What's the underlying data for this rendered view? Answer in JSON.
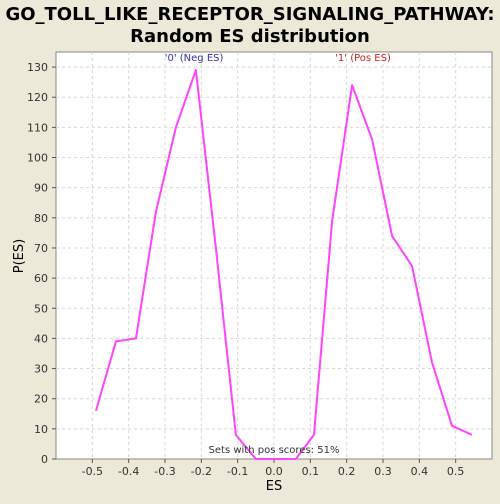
{
  "chart_data": {
    "type": "line",
    "title_line1": "GO_TOLL_LIKE_RECEPTOR_SIGNALING_PATHWAY:",
    "title_line2": "Random ES distribution",
    "xlabel": "ES",
    "ylabel": "P(ES)",
    "xlim": [
      -0.6,
      0.6
    ],
    "ylim": [
      0,
      135
    ],
    "x_ticks": [
      -0.5,
      -0.4,
      -0.3,
      -0.2,
      -0.1,
      0.0,
      0.1,
      0.2,
      0.3,
      0.4,
      0.5
    ],
    "x_tick_labels": [
      "-0.5",
      "-0.4",
      "-0.3",
      "-0.2",
      "-0.1",
      "0.0",
      "0.1",
      "0.2",
      "0.3",
      "0.4",
      "0.5"
    ],
    "y_ticks": [
      0,
      10,
      20,
      30,
      40,
      50,
      60,
      70,
      80,
      90,
      100,
      110,
      120,
      130
    ],
    "y_tick_labels": [
      "0",
      "10",
      "20",
      "30",
      "40",
      "50",
      "60",
      "70",
      "80",
      "90",
      "100",
      "110",
      "120",
      "130"
    ],
    "grid": true,
    "line_color": "#ff44ff",
    "background_color": "#ece9d8",
    "plot_background": "#ffffff",
    "annotations": [
      {
        "text": "'0' (Neg ES)",
        "x": -0.22,
        "y": 132,
        "color": "#3333aa"
      },
      {
        "text": "'1' (Pos ES)",
        "x": 0.245,
        "y": 132,
        "color": "#cc2222"
      },
      {
        "text": "Sets with pos scores: 51%",
        "x": 0.0,
        "y": 2,
        "color": "#333333"
      }
    ],
    "series": [
      {
        "x": [
          -0.49,
          -0.435,
          -0.38,
          -0.325,
          -0.27,
          -0.215,
          -0.16,
          -0.105,
          -0.05,
          0.005,
          0.06,
          0.11,
          0.16,
          0.215,
          0.27,
          0.325,
          0.38,
          0.435,
          0.49,
          0.545
        ],
        "values": [
          16,
          39,
          40,
          82,
          110,
          129,
          70,
          8,
          0,
          0,
          0,
          8,
          79,
          124,
          106,
          74,
          64,
          32,
          11,
          8
        ]
      }
    ]
  }
}
